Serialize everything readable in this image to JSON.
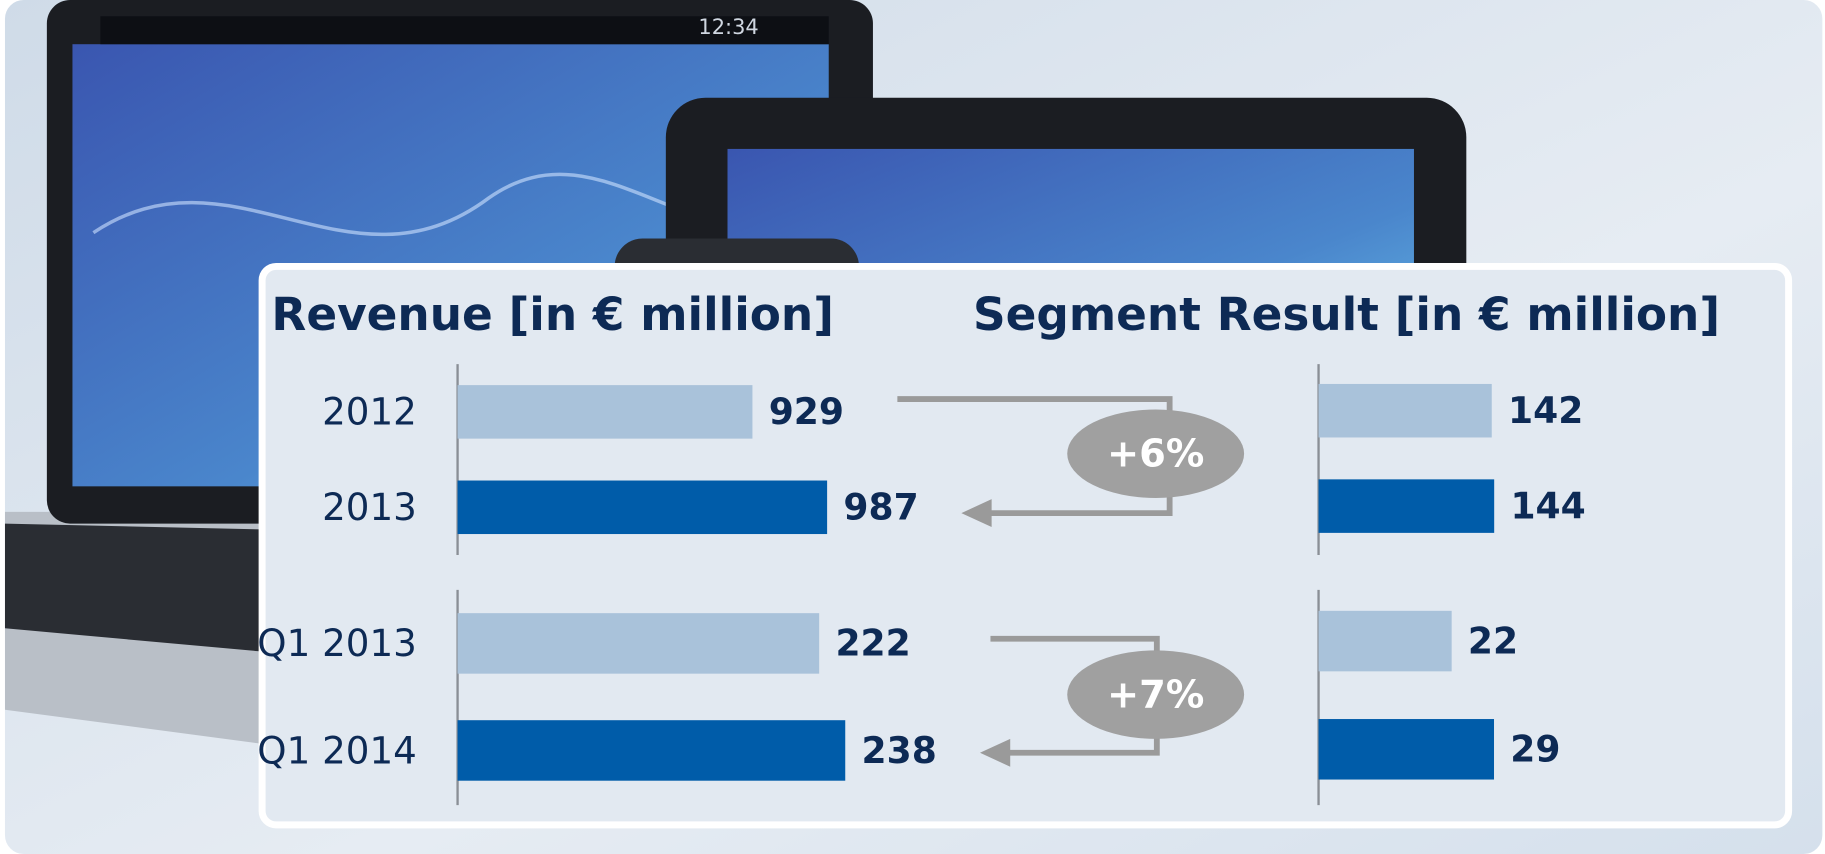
{
  "device_clock": "12:34",
  "chart_data": [
    {
      "type": "bar",
      "title": "Revenue [in € million]",
      "categories": [
        "2012",
        "2013"
      ],
      "values": [
        929,
        987
      ],
      "colors": [
        "#a9c2da",
        "#005ca9"
      ],
      "xlim": [
        700,
        1000
      ],
      "annotation": "+6%"
    },
    {
      "type": "bar",
      "categories": [
        "Q1 2013",
        "Q1 2014"
      ],
      "values": [
        222,
        238
      ],
      "colors": [
        "#a9c2da",
        "#005ca9"
      ],
      "xlim": [
        0,
        240
      ],
      "annotation": "+7%"
    },
    {
      "type": "bar",
      "title": "Segment Result [in € million]",
      "values": [
        142,
        144
      ],
      "colors": [
        "#a9c2da",
        "#005ca9"
      ],
      "xlim": [
        0,
        145
      ]
    },
    {
      "type": "bar",
      "values": [
        22,
        29
      ],
      "colors": [
        "#a9c2da",
        "#005ca9"
      ],
      "xlim": [
        0,
        30
      ]
    }
  ]
}
